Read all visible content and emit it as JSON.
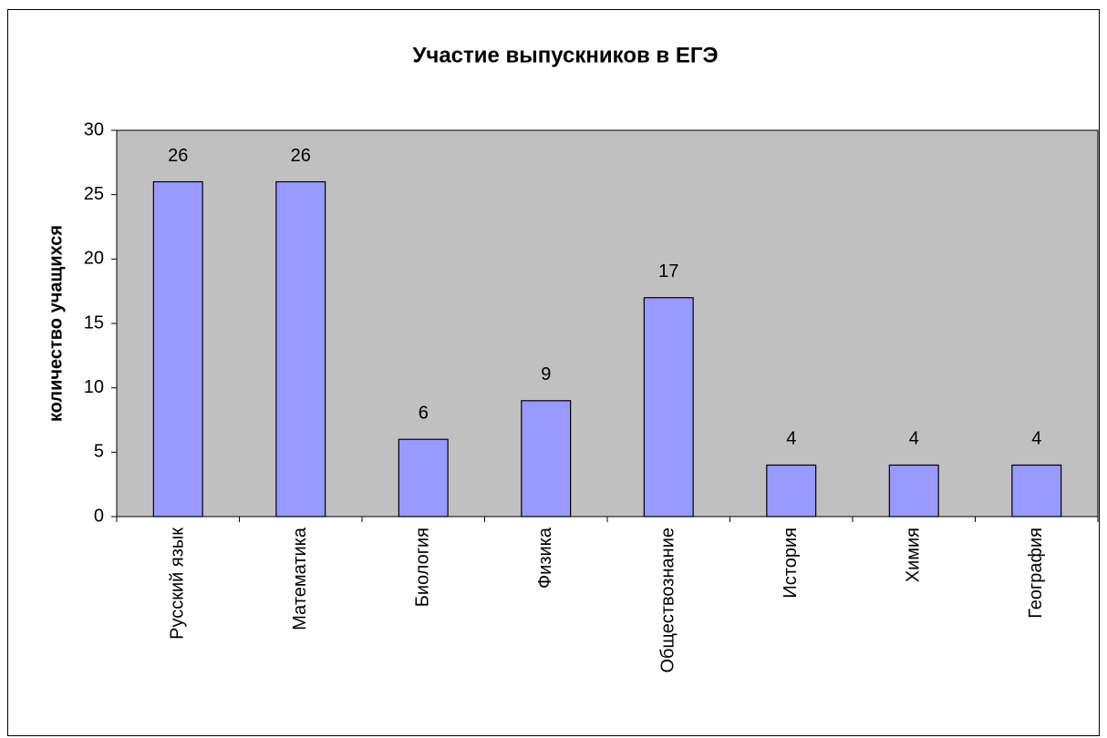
{
  "chart_data": {
    "type": "bar",
    "title": "Участие выпускников в ЕГЭ",
    "y_label": "количество учащихся",
    "categories": [
      "Русский язык",
      "Математика",
      "Биология",
      "Физика",
      "Обществознание",
      "История",
      "Химия",
      "География"
    ],
    "values": [
      26,
      26,
      6,
      9,
      17,
      4,
      4,
      4
    ],
    "color": "#9999ff",
    "plot_background": "#c0c0c0",
    "ylim": [
      0,
      30
    ],
    "yticks": [
      0,
      5,
      10,
      15,
      20,
      25,
      30
    ],
    "grid": false
  }
}
